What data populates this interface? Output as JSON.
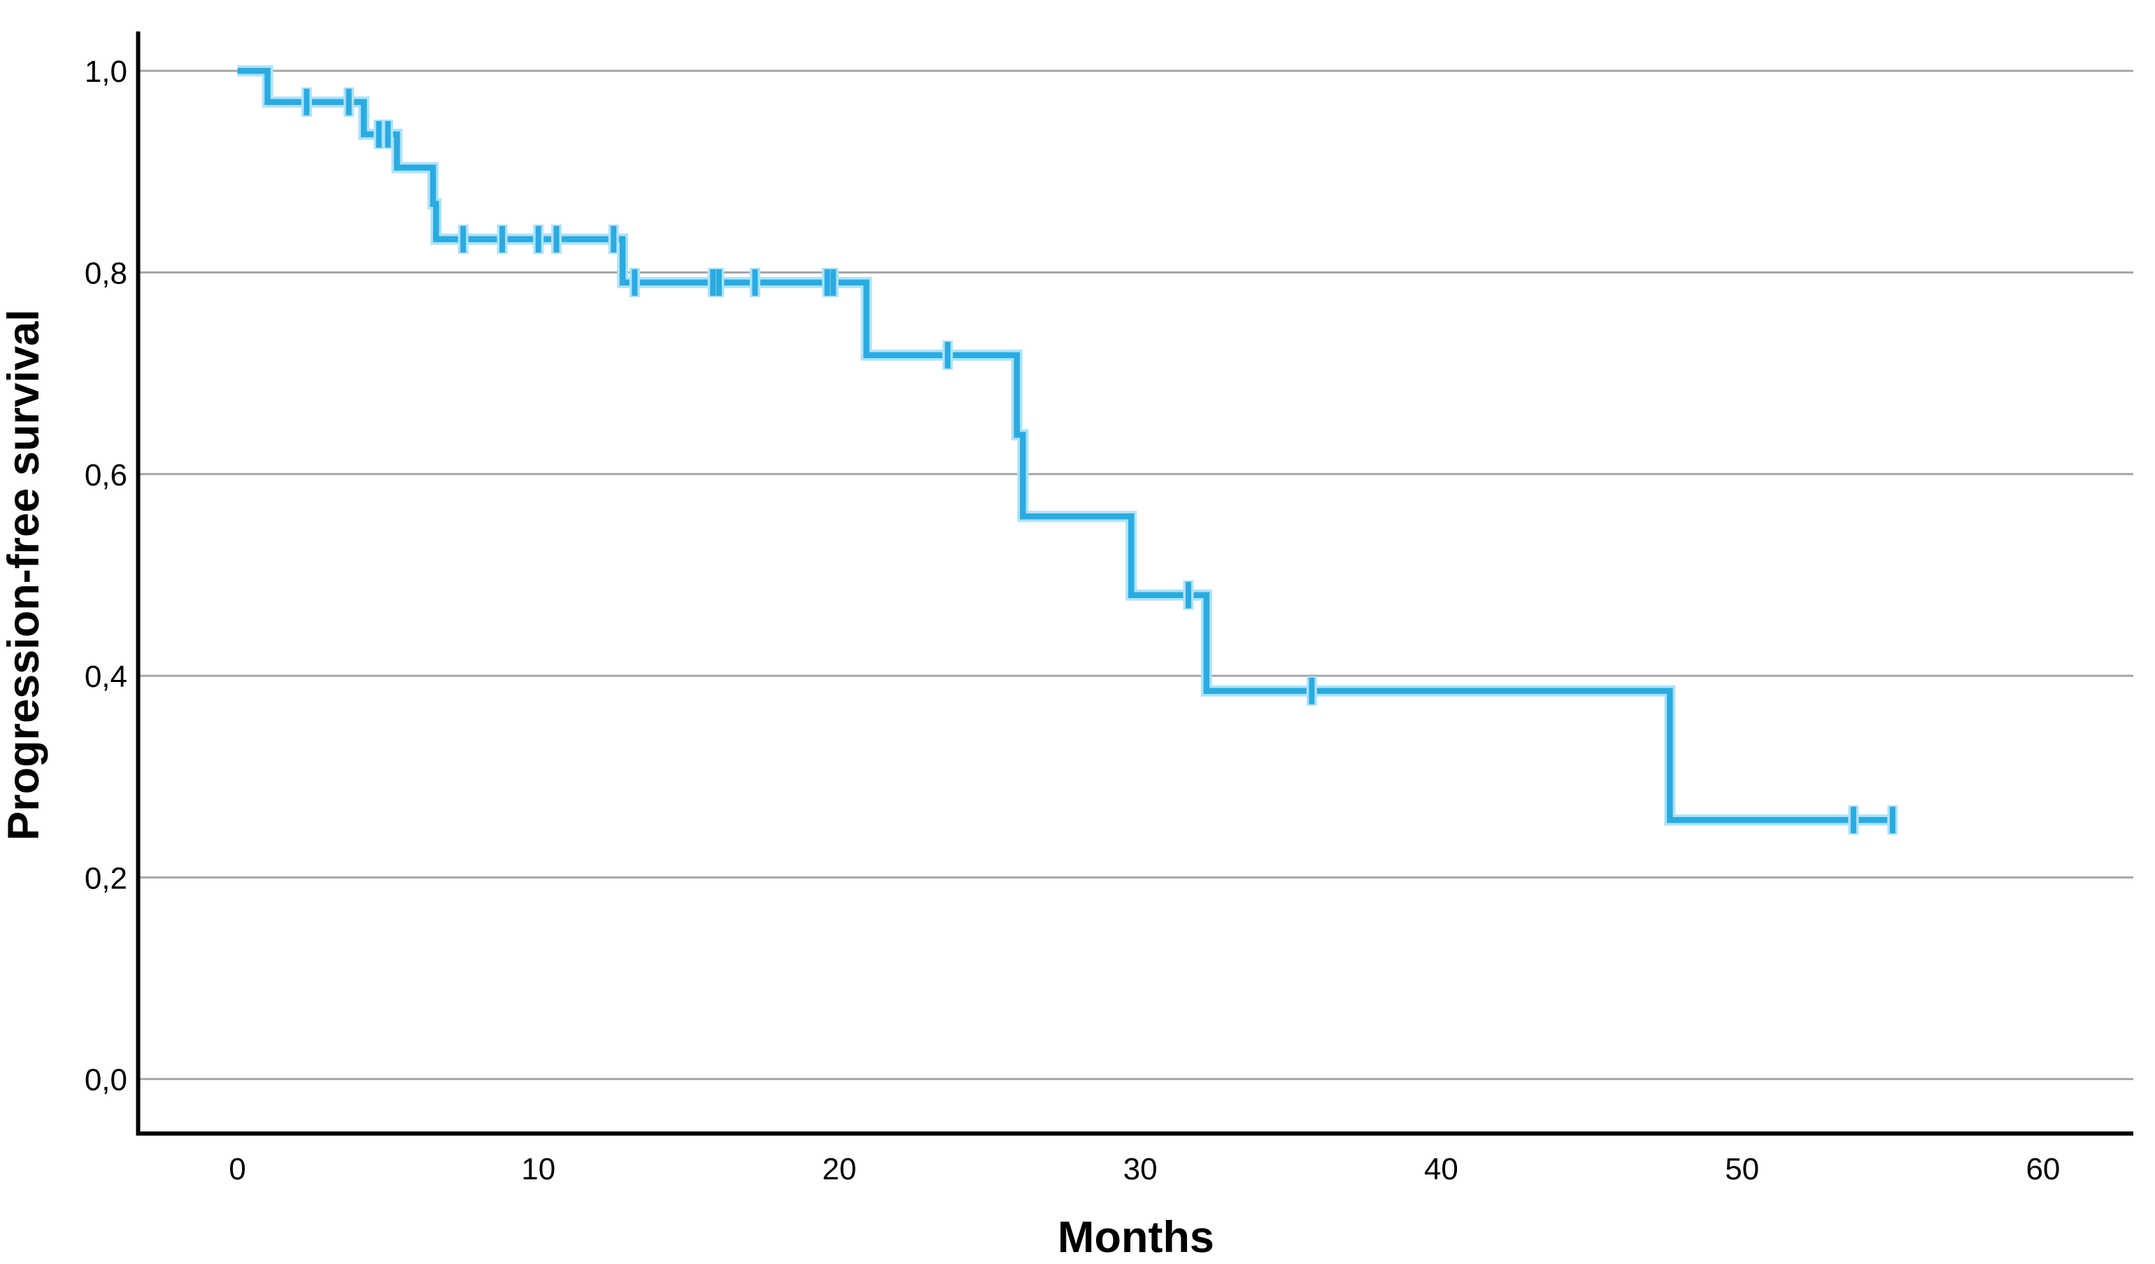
{
  "figure": {
    "background_color": "#ffffff",
    "axis_color": "#000000",
    "grid_color": "#a6a6a6",
    "text_color": "#000000",
    "accent_color": "#29abe2"
  },
  "chart_data": {
    "type": "line",
    "subtype": "kaplan_meier_step",
    "title": "",
    "xlabel": "Months",
    "ylabel": "Progression-free survival",
    "xlim": [
      -3.3,
      63.0
    ],
    "ylim": [
      -0.054,
      1.039
    ],
    "grid": "horizontal",
    "legend_position": "none",
    "decimal_separator": ",",
    "x_ticks": [
      {
        "value": 0,
        "label": "0"
      },
      {
        "value": 10,
        "label": "10"
      },
      {
        "value": 20,
        "label": "20"
      },
      {
        "value": 30,
        "label": "30"
      },
      {
        "value": 40,
        "label": "40"
      },
      {
        "value": 50,
        "label": "50"
      },
      {
        "value": 60,
        "label": "60"
      }
    ],
    "y_ticks": [
      {
        "value": 0.0,
        "label": "0,0"
      },
      {
        "value": 0.2,
        "label": "0,2"
      },
      {
        "value": 0.4,
        "label": "0,4"
      },
      {
        "value": 0.6,
        "label": "0,6"
      },
      {
        "value": 0.8,
        "label": "0,8"
      },
      {
        "value": 1.0,
        "label": "1,0"
      }
    ],
    "series": [
      {
        "name": "Progression-free survival",
        "color": "#29abe2",
        "halo_color": "#b0e2f7",
        "start": [
          0,
          1.0
        ],
        "drops": [
          [
            1.0,
            0.969
          ],
          [
            4.2,
            0.937
          ],
          [
            5.3,
            0.904
          ],
          [
            6.5,
            0.868
          ],
          [
            6.6,
            0.833
          ],
          [
            12.8,
            0.79
          ],
          [
            20.9,
            0.718
          ],
          [
            25.9,
            0.639
          ],
          [
            26.1,
            0.558
          ],
          [
            29.7,
            0.48
          ],
          [
            32.2,
            0.385
          ],
          [
            47.6,
            0.257
          ]
        ],
        "end_time": 55.1,
        "censored_marks": [
          [
            2.3,
            0.969
          ],
          [
            3.7,
            0.969
          ],
          [
            4.7,
            0.937
          ],
          [
            5.0,
            0.937
          ],
          [
            7.5,
            0.833
          ],
          [
            8.8,
            0.833
          ],
          [
            10.0,
            0.833
          ],
          [
            10.6,
            0.833
          ],
          [
            12.5,
            0.833
          ],
          [
            13.2,
            0.79
          ],
          [
            15.8,
            0.79
          ],
          [
            16.0,
            0.79
          ],
          [
            17.2,
            0.79
          ],
          [
            19.6,
            0.79
          ],
          [
            19.8,
            0.79
          ],
          [
            23.6,
            0.718
          ],
          [
            31.6,
            0.48
          ],
          [
            35.7,
            0.385
          ],
          [
            53.7,
            0.257
          ],
          [
            55.0,
            0.257
          ]
        ]
      }
    ]
  }
}
